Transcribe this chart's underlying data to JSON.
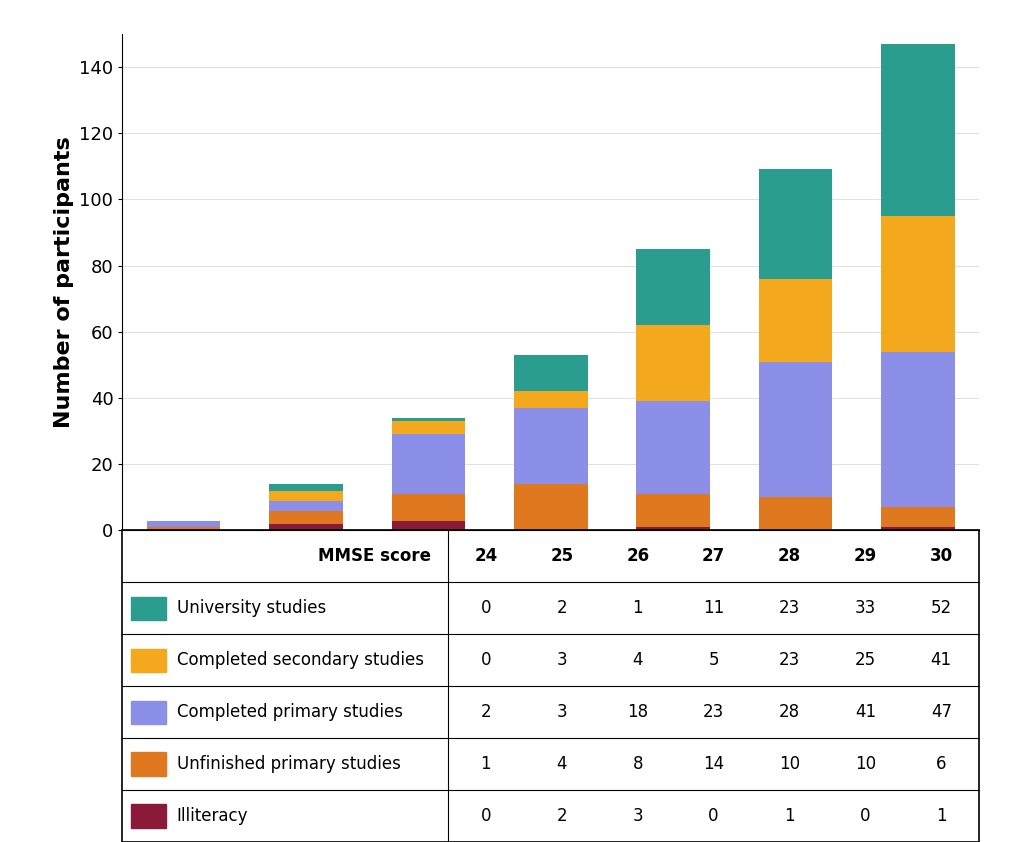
{
  "categories": [
    24,
    25,
    26,
    27,
    28,
    29,
    30
  ],
  "series": [
    {
      "label": "University studies",
      "color": "#2a9d8f",
      "values": [
        0,
        2,
        1,
        11,
        23,
        33,
        52
      ]
    },
    {
      "label": "Completed secondary studies",
      "color": "#f4a81d",
      "values": [
        0,
        3,
        4,
        5,
        23,
        25,
        41
      ]
    },
    {
      "label": "Completed primary studies",
      "color": "#8b8fe8",
      "values": [
        2,
        3,
        18,
        23,
        28,
        41,
        47
      ]
    },
    {
      "label": "Unfinished primary studies",
      "color": "#e07820",
      "values": [
        1,
        4,
        8,
        14,
        10,
        10,
        6
      ]
    },
    {
      "label": "Illiteracy",
      "color": "#8b1a3a",
      "values": [
        0,
        2,
        3,
        0,
        1,
        0,
        1
      ]
    }
  ],
  "ylabel": "Number of participants",
  "xlabel": "MMSE score",
  "ylim": [
    0,
    150
  ],
  "yticks": [
    0,
    20,
    40,
    60,
    80,
    100,
    120,
    140
  ],
  "axis_label_fontsize": 16,
  "tick_fontsize": 13,
  "table_fontsize": 12,
  "bar_width": 0.6
}
